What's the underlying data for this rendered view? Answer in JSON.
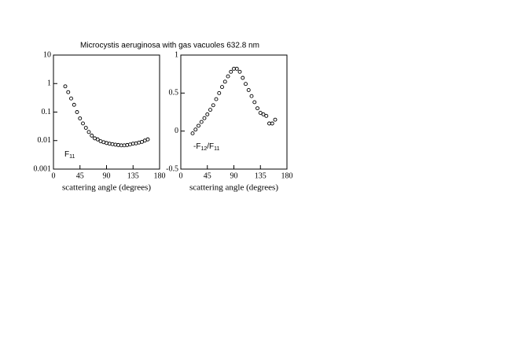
{
  "chart_data": [
    {
      "type": "scatter",
      "title": "Microcystis aeruginosa with gas vacuoles 632.8 nm",
      "xlabel": "scattering angle (degrees)",
      "log_y": true,
      "annotation": [
        {
          "text": "F"
        },
        {
          "text": "11",
          "sub": true
        }
      ],
      "x": [
        20,
        25,
        30,
        35,
        40,
        45,
        50,
        55,
        60,
        65,
        70,
        75,
        80,
        85,
        90,
        95,
        100,
        105,
        110,
        115,
        120,
        125,
        130,
        135,
        140,
        145,
        150,
        155,
        160
      ],
      "values": [
        0.8,
        0.5,
        0.3,
        0.18,
        0.1,
        0.06,
        0.04,
        0.028,
        0.02,
        0.015,
        0.012,
        0.011,
        0.0095,
        0.0088,
        0.0082,
        0.0078,
        0.0075,
        0.0072,
        0.007,
        0.0068,
        0.0068,
        0.007,
        0.0073,
        0.0078,
        0.008,
        0.0085,
        0.009,
        0.01,
        0.011
      ],
      "xlim": [
        0,
        180
      ],
      "xticks": [
        0,
        45,
        90,
        135,
        180
      ],
      "ylim": [
        0.001,
        10
      ],
      "yticks": [
        0.001,
        0.01,
        0.1,
        1,
        10
      ]
    },
    {
      "type": "scatter",
      "xlabel": "scattering angle (degrees)",
      "log_y": false,
      "annotation": [
        {
          "text": "-F"
        },
        {
          "text": "12",
          "sub": true
        },
        {
          "text": "/F"
        },
        {
          "text": "11",
          "sub": true
        }
      ],
      "x": [
        20,
        25,
        30,
        35,
        40,
        45,
        50,
        55,
        60,
        65,
        70,
        75,
        80,
        85,
        90,
        95,
        100,
        105,
        110,
        115,
        120,
        125,
        130,
        135,
        140,
        145,
        150,
        155,
        160
      ],
      "values": [
        -0.03,
        0.02,
        0.07,
        0.12,
        0.17,
        0.22,
        0.28,
        0.34,
        0.42,
        0.5,
        0.58,
        0.65,
        0.72,
        0.78,
        0.82,
        0.82,
        0.78,
        0.7,
        0.62,
        0.54,
        0.46,
        0.38,
        0.3,
        0.24,
        0.22,
        0.2,
        0.1,
        0.1,
        0.15
      ],
      "xlim": [
        0,
        180
      ],
      "xticks": [
        0,
        45,
        90,
        135,
        180
      ],
      "ylim": [
        -0.5,
        1
      ],
      "yticks": [
        -0.5,
        0,
        0.5,
        1
      ]
    }
  ]
}
